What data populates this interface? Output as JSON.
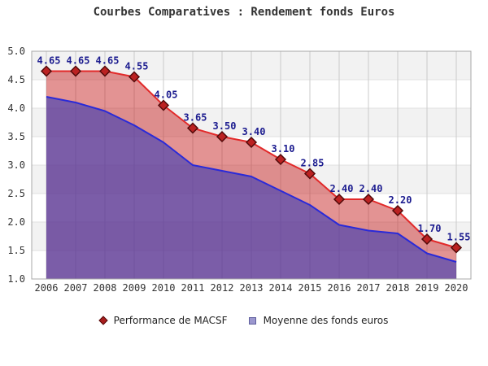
{
  "title": "Courbes Comparatives : Rendement fonds Euros",
  "legend": {
    "items": [
      {
        "label": "Performance de MACSF",
        "marker": "diamond",
        "marker_fill": "#a81e1e",
        "marker_border": "#520a0a"
      },
      {
        "label": "Moyenne des fonds euros",
        "marker": "square",
        "marker_fill": "#9b97ce",
        "marker_border": "#5f5f9e"
      }
    ]
  },
  "chart_data": {
    "type": "area",
    "title": "Courbes Comparatives : Rendement fonds Euros",
    "x": [
      2006,
      2007,
      2008,
      2009,
      2010,
      2011,
      2012,
      2013,
      2014,
      2015,
      2016,
      2017,
      2018,
      2019,
      2020
    ],
    "series": [
      {
        "name": "Performance de MACSF",
        "values": [
          4.65,
          4.65,
          4.65,
          4.55,
          4.05,
          3.65,
          3.5,
          3.4,
          3.1,
          2.85,
          2.4,
          2.4,
          2.2,
          1.7,
          1.55
        ],
        "line_color": "#e22a2a",
        "fill_color": "rgba(200,40,40,0.50)",
        "marker": "diamond",
        "marker_fill": "#bb2222",
        "marker_stroke": "#520a0a",
        "point_labels": true,
        "label_color": "#1c1c8f"
      },
      {
        "name": "Moyenne des fonds euros",
        "values": [
          4.2,
          4.1,
          3.95,
          3.7,
          3.4,
          3.0,
          2.9,
          2.8,
          2.55,
          2.3,
          1.95,
          1.85,
          1.8,
          1.45,
          1.3
        ],
        "line_color": "#2a2ad8",
        "fill_color": "rgba(60,60,180,0.62)",
        "marker": "none",
        "point_labels": false
      }
    ],
    "ylim": [
      1.0,
      5.0
    ],
    "ytick_step": 0.5,
    "xlabel": "",
    "ylabel": "",
    "grid": true,
    "legend_position": "bottom",
    "band_colors": [
      "#f2f2f2",
      "#ffffff"
    ],
    "h_grid_color": "#e0e0e0",
    "v_grid_color": "#cbcbcb",
    "border_color": "#a8a8a8",
    "tick_label_color": "#333333"
  }
}
